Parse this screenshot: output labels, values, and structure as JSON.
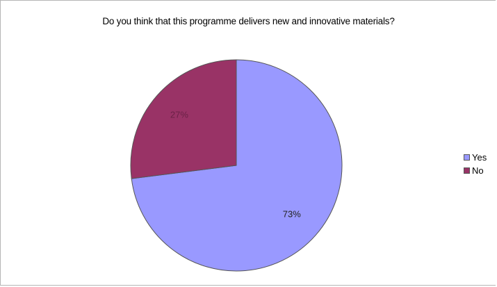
{
  "chart_data": {
    "type": "pie",
    "title": "Do you think that this programme delivers new and innovative materials?",
    "categories": [
      "Yes",
      "No"
    ],
    "values": [
      73,
      27
    ],
    "value_labels": [
      "73%",
      "27%"
    ],
    "colors": [
      "#9999ff",
      "#993366"
    ],
    "legend_position": "right"
  }
}
